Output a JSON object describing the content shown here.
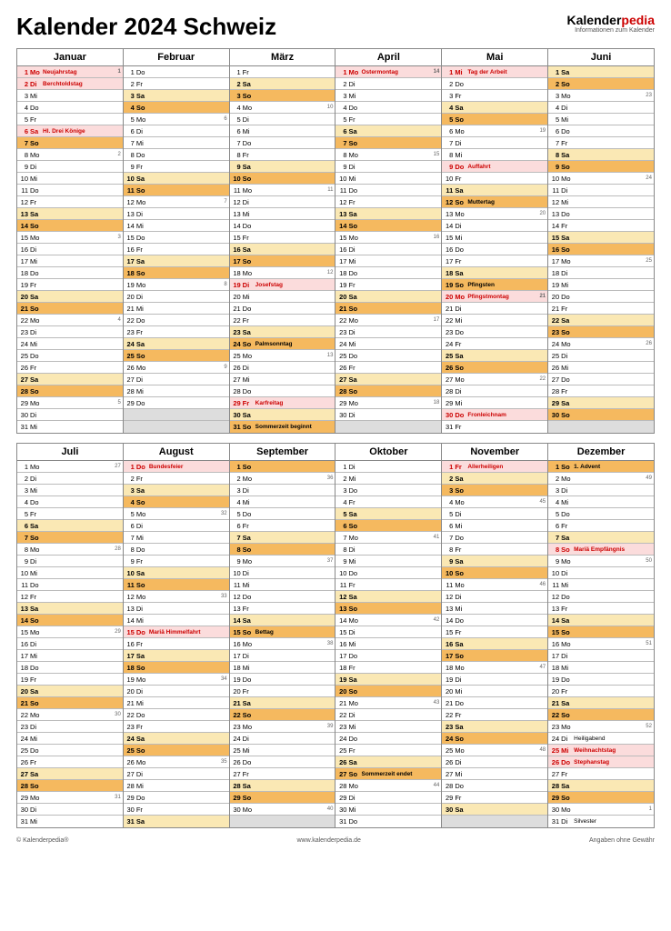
{
  "title": "Kalender 2024 Schweiz",
  "brand": {
    "name": "Kalender",
    "suffix": "pedia",
    "sub": "Informationen zum Kalender"
  },
  "footer": {
    "left": "© Kalenderpedia®",
    "mid": "www.kalenderpedia.de",
    "right": "Angaben ohne Gewähr"
  },
  "colors": {
    "sat": "#fae8b4",
    "sun": "#f5b95f",
    "hol": "#fbdcdc",
    "empty": "#dddddd",
    "holtext": "#c00"
  },
  "dow": [
    "Mo",
    "Di",
    "Mi",
    "Do",
    "Fr",
    "Sa",
    "So"
  ],
  "months": [
    {
      "name": "Januar",
      "start": 0,
      "days": 31,
      "hol": {
        "1": "Neujahrstag",
        "2": "Berchtoldstag",
        "6": "Hl. Drei Könige"
      },
      "wk": {
        "1": 1,
        "8": 2,
        "15": 3,
        "22": 4,
        "29": 5
      }
    },
    {
      "name": "Februar",
      "start": 3,
      "days": 29,
      "hol": {},
      "wk": {
        "5": 6,
        "12": 7,
        "19": 8,
        "26": 9
      }
    },
    {
      "name": "März",
      "start": 4,
      "days": 31,
      "hol": {
        "19": "Josefstag",
        "29": "Karfreitag"
      },
      "ev": {
        "24": "Palmsonntag",
        "31": "Sommerzeit beginnt"
      },
      "wk": {
        "4": 10,
        "11": 11,
        "18": 12,
        "25": 13
      }
    },
    {
      "name": "April",
      "start": 0,
      "days": 30,
      "hol": {
        "1": "Ostermontag"
      },
      "wk": {
        "1": 14,
        "8": 15,
        "15": 16,
        "22": 17,
        "29": 18
      }
    },
    {
      "name": "Mai",
      "start": 2,
      "days": 31,
      "hol": {
        "1": "Tag der Arbeit",
        "9": "Auffahrt",
        "20": "Pfingstmontag",
        "30": "Fronleichnam"
      },
      "ev": {
        "12": "Muttertag",
        "19": "Pfingsten"
      },
      "wk": {
        "6": 19,
        "13": 20,
        "20": 21,
        "27": 22
      }
    },
    {
      "name": "Juni",
      "start": 5,
      "days": 30,
      "hol": {},
      "wk": {
        "3": 23,
        "10": 24,
        "17": 25,
        "24": 26
      }
    },
    {
      "name": "Juli",
      "start": 0,
      "days": 31,
      "hol": {},
      "wk": {
        "1": 27,
        "8": 28,
        "15": 29,
        "22": 30,
        "29": 31
      }
    },
    {
      "name": "August",
      "start": 3,
      "days": 31,
      "hol": {
        "1": "Bundesfeier",
        "15": "Mariä Himmelfahrt"
      },
      "wk": {
        "5": 32,
        "12": 33,
        "19": 34,
        "26": 35
      }
    },
    {
      "name": "September",
      "start": 6,
      "days": 30,
      "hol": {},
      "ev": {
        "15": "Bettag"
      },
      "wk": {
        "2": 36,
        "9": 37,
        "16": 38,
        "23": 39,
        "30": 40
      }
    },
    {
      "name": "Oktober",
      "start": 1,
      "days": 31,
      "hol": {},
      "ev": {
        "27": "Sommerzeit endet"
      },
      "wk": {
        "7": 41,
        "14": 42,
        "21": 43,
        "28": 44
      }
    },
    {
      "name": "November",
      "start": 4,
      "days": 30,
      "hol": {
        "1": "Allerheiligen"
      },
      "wk": {
        "4": 45,
        "11": 46,
        "18": 47,
        "25": 48
      }
    },
    {
      "name": "Dezember",
      "start": 6,
      "days": 31,
      "hol": {
        "8": "Mariä Empfängnis",
        "25": "Weihnachtstag",
        "26": "Stephanstag"
      },
      "ev": {
        "1": "1. Advent",
        "24": "Heiligabend",
        "31": "Silvester"
      },
      "wk": {
        "2": 49,
        "9": 50,
        "16": 51,
        "23": 52,
        "30": 1
      }
    }
  ]
}
